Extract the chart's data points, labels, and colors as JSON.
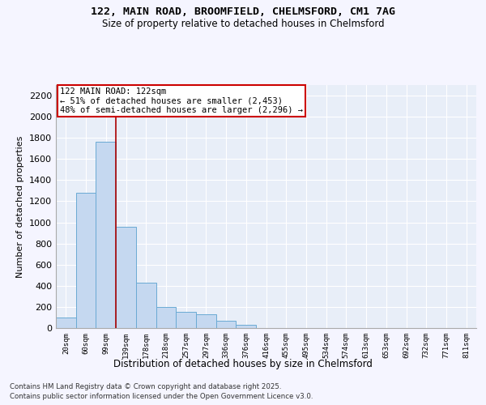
{
  "title_line1": "122, MAIN ROAD, BROOMFIELD, CHELMSFORD, CM1 7AG",
  "title_line2": "Size of property relative to detached houses in Chelmsford",
  "xlabel": "Distribution of detached houses by size in Chelmsford",
  "ylabel": "Number of detached properties",
  "categories": [
    "20sqm",
    "60sqm",
    "99sqm",
    "139sqm",
    "178sqm",
    "218sqm",
    "257sqm",
    "297sqm",
    "336sqm",
    "376sqm",
    "416sqm",
    "455sqm",
    "495sqm",
    "534sqm",
    "574sqm",
    "613sqm",
    "653sqm",
    "692sqm",
    "732sqm",
    "771sqm",
    "811sqm"
  ],
  "values": [
    100,
    1280,
    1760,
    960,
    430,
    200,
    150,
    130,
    70,
    30,
    0,
    0,
    0,
    0,
    0,
    0,
    0,
    0,
    0,
    0,
    0
  ],
  "bar_color": "#c5d8f0",
  "bar_edge_color": "#6aaad4",
  "line_color": "#aa0000",
  "line_x_index": 2,
  "annotation_text": "122 MAIN ROAD: 122sqm\n← 51% of detached houses are smaller (2,453)\n48% of semi-detached houses are larger (2,296) →",
  "annotation_box_facecolor": "#ffffff",
  "annotation_box_edgecolor": "#cc0000",
  "ylim_max": 2300,
  "yticks": [
    0,
    200,
    400,
    600,
    800,
    1000,
    1200,
    1400,
    1600,
    1800,
    2000,
    2200
  ],
  "plot_bg_color": "#e8eef8",
  "grid_color": "#ffffff",
  "fig_bg_color": "#f5f5ff",
  "footer_line1": "Contains HM Land Registry data © Crown copyright and database right 2025.",
  "footer_line2": "Contains public sector information licensed under the Open Government Licence v3.0."
}
